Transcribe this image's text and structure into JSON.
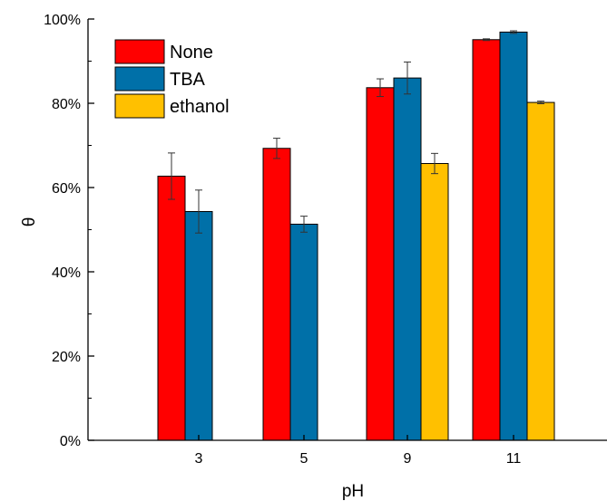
{
  "chart_data": {
    "type": "bar",
    "xlabel": "pH",
    "ylabel": "θ",
    "categories": [
      "3",
      "5",
      "9",
      "11"
    ],
    "ylim": [
      0,
      100
    ],
    "yticks": [
      "0%",
      "20%",
      "40%",
      "60%",
      "80%",
      "100%"
    ],
    "series": [
      {
        "name": "None",
        "color": "#ff0000",
        "values": [
          62.7,
          69.3,
          83.7,
          95.1
        ],
        "errors": [
          5.5,
          2.4,
          2.1,
          0.2
        ]
      },
      {
        "name": "TBA",
        "color": "#0070a8",
        "values": [
          54.3,
          51.3,
          86.0,
          96.9
        ],
        "errors": [
          5.1,
          1.9,
          3.8,
          0.3
        ]
      },
      {
        "name": "ethanol",
        "color": "#ffc000",
        "values": [
          null,
          null,
          65.7,
          80.2
        ],
        "errors": [
          null,
          null,
          2.4,
          0.3
        ]
      }
    ],
    "legend_position": "top-left",
    "grid": false
  }
}
